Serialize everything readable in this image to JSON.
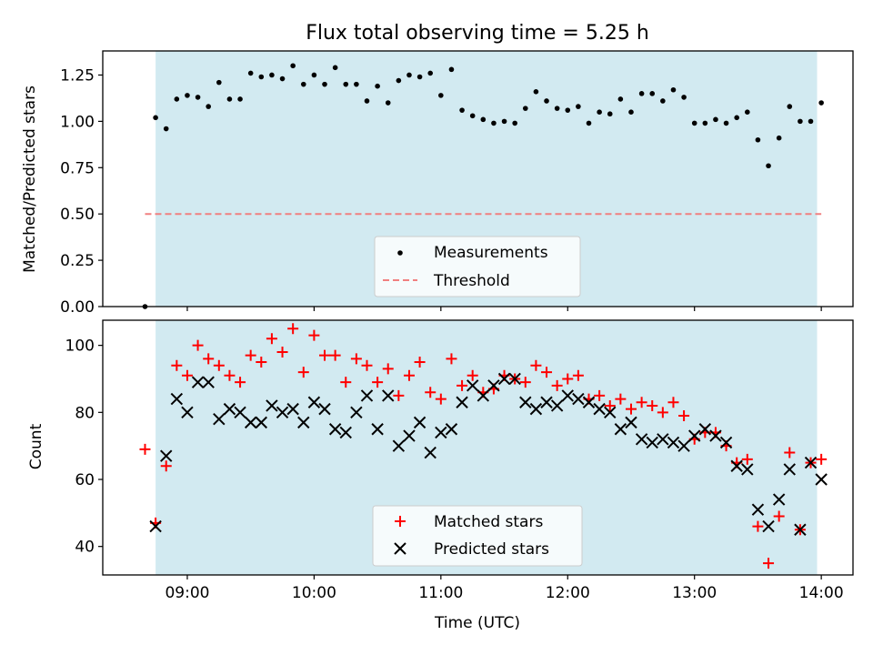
{
  "chart_data": [
    {
      "type": "scatter",
      "title": "Flux total observing time = 5.25 h",
      "xlabel": "",
      "ylabel": "Matched/Predicted stars",
      "x_range": [
        "08:20",
        "14:15"
      ],
      "ylim": [
        0.0,
        1.38
      ],
      "yticks": [
        "0.00",
        "0.25",
        "0.50",
        "0.75",
        "1.00",
        "1.25"
      ],
      "ytick_values": [
        0,
        0.25,
        0.5,
        0.75,
        1.0,
        1.25
      ],
      "shaded_span": [
        "08:45",
        "13:58"
      ],
      "shade_color": "#add8e6",
      "legend_position": "lower center",
      "threshold": {
        "name": "Threshold",
        "value": 0.5,
        "x_start": "08:40",
        "x_end": "14:00",
        "color": "#f08080",
        "style": "dashed"
      },
      "series": [
        {
          "name": "Measurements",
          "marker": "dot",
          "color": "#000000",
          "x": [
            "08:40",
            "08:45",
            "08:50",
            "08:55",
            "09:00",
            "09:05",
            "09:10",
            "09:15",
            "09:20",
            "09:25",
            "09:30",
            "09:35",
            "09:40",
            "09:45",
            "09:50",
            "09:55",
            "10:00",
            "10:05",
            "10:10",
            "10:15",
            "10:20",
            "10:25",
            "10:30",
            "10:35",
            "10:40",
            "10:45",
            "10:50",
            "10:55",
            "11:00",
            "11:05",
            "11:10",
            "11:15",
            "11:20",
            "11:25",
            "11:30",
            "11:35",
            "11:40",
            "11:45",
            "11:50",
            "11:55",
            "12:00",
            "12:05",
            "12:10",
            "12:15",
            "12:20",
            "12:25",
            "12:30",
            "12:35",
            "12:40",
            "12:45",
            "12:50",
            "12:55",
            "13:00",
            "13:05",
            "13:10",
            "13:15",
            "13:20",
            "13:25",
            "13:30",
            "13:35",
            "13:40",
            "13:45",
            "13:50",
            "13:55",
            "14:00"
          ],
          "y": [
            0.0,
            1.02,
            0.96,
            1.12,
            1.14,
            1.13,
            1.08,
            1.21,
            1.12,
            1.12,
            1.26,
            1.24,
            1.25,
            1.23,
            1.3,
            1.2,
            1.25,
            1.2,
            1.29,
            1.2,
            1.2,
            1.11,
            1.19,
            1.1,
            1.22,
            1.25,
            1.24,
            1.26,
            1.14,
            1.28,
            1.06,
            1.03,
            1.01,
            0.99,
            1.0,
            0.99,
            1.07,
            1.16,
            1.11,
            1.07,
            1.06,
            1.08,
            0.99,
            1.05,
            1.04,
            1.12,
            1.05,
            1.15,
            1.15,
            1.11,
            1.17,
            1.13,
            0.99,
            0.99,
            1.01,
            0.99,
            1.02,
            1.05,
            0.9,
            0.76,
            0.91,
            1.08,
            1.0,
            1.0,
            1.1
          ]
        }
      ]
    },
    {
      "type": "scatter",
      "title": "",
      "xlabel": "Time (UTC)",
      "ylabel": "Count",
      "x_range": [
        "08:20",
        "14:15"
      ],
      "xticks": [
        "09:00",
        "10:00",
        "11:00",
        "12:00",
        "13:00",
        "14:00"
      ],
      "ylim": [
        31.5,
        107.5
      ],
      "yticks": [
        "40",
        "60",
        "80",
        "100"
      ],
      "ytick_values": [
        40,
        60,
        80,
        100
      ],
      "shaded_span": [
        "08:45",
        "13:58"
      ],
      "shade_color": "#add8e6",
      "legend_position": "lower center",
      "series": [
        {
          "name": "Matched stars",
          "marker": "plus",
          "color": "#ff0000",
          "x": [
            "08:40",
            "08:45",
            "08:50",
            "08:55",
            "09:00",
            "09:05",
            "09:10",
            "09:15",
            "09:20",
            "09:25",
            "09:30",
            "09:35",
            "09:40",
            "09:45",
            "09:50",
            "09:55",
            "10:00",
            "10:05",
            "10:10",
            "10:15",
            "10:20",
            "10:25",
            "10:30",
            "10:35",
            "10:40",
            "10:45",
            "10:50",
            "10:55",
            "11:00",
            "11:05",
            "11:10",
            "11:15",
            "11:20",
            "11:25",
            "11:30",
            "11:35",
            "11:40",
            "11:45",
            "11:50",
            "11:55",
            "12:00",
            "12:05",
            "12:10",
            "12:15",
            "12:20",
            "12:25",
            "12:30",
            "12:35",
            "12:40",
            "12:45",
            "12:50",
            "12:55",
            "13:00",
            "13:05",
            "13:10",
            "13:15",
            "13:20",
            "13:25",
            "13:30",
            "13:35",
            "13:40",
            "13:45",
            "13:50",
            "13:55",
            "14:00"
          ],
          "y": [
            69,
            47,
            64,
            94,
            91,
            100,
            96,
            94,
            91,
            89,
            97,
            95,
            102,
            98,
            105,
            92,
            103,
            97,
            97,
            89,
            96,
            94,
            89,
            93,
            85,
            91,
            95,
            86,
            84,
            96,
            88,
            91,
            86,
            87,
            91,
            90,
            89,
            94,
            92,
            88,
            90,
            91,
            84,
            85,
            82,
            84,
            81,
            83,
            82,
            80,
            83,
            79,
            72,
            74,
            74,
            70,
            65,
            66,
            46,
            35,
            49,
            68,
            45,
            65,
            66
          ]
        },
        {
          "name": "Predicted stars",
          "marker": "x",
          "color": "#000000",
          "x": [
            "08:45",
            "08:50",
            "08:55",
            "09:00",
            "09:05",
            "09:10",
            "09:15",
            "09:20",
            "09:25",
            "09:30",
            "09:35",
            "09:40",
            "09:45",
            "09:50",
            "09:55",
            "10:00",
            "10:05",
            "10:10",
            "10:15",
            "10:20",
            "10:25",
            "10:30",
            "10:35",
            "10:40",
            "10:45",
            "10:50",
            "10:55",
            "11:00",
            "11:05",
            "11:10",
            "11:15",
            "11:20",
            "11:25",
            "11:30",
            "11:35",
            "11:40",
            "11:45",
            "11:50",
            "11:55",
            "12:00",
            "12:05",
            "12:10",
            "12:15",
            "12:20",
            "12:25",
            "12:30",
            "12:35",
            "12:40",
            "12:45",
            "12:50",
            "12:55",
            "13:00",
            "13:05",
            "13:10",
            "13:15",
            "13:20",
            "13:25",
            "13:30",
            "13:35",
            "13:40",
            "13:45",
            "13:50",
            "13:55",
            "14:00"
          ],
          "y": [
            46,
            67,
            84,
            80,
            89,
            89,
            78,
            81,
            80,
            77,
            77,
            82,
            80,
            81,
            77,
            83,
            81,
            75,
            74,
            80,
            85,
            75,
            85,
            70,
            73,
            77,
            68,
            74,
            75,
            83,
            88,
            85,
            88,
            90,
            90,
            83,
            81,
            83,
            82,
            85,
            84,
            83,
            81,
            80,
            75,
            77,
            72,
            71,
            72,
            71,
            70,
            73,
            75,
            73,
            71,
            64,
            63,
            51,
            46,
            54,
            63,
            45,
            65,
            60
          ]
        }
      ]
    }
  ]
}
